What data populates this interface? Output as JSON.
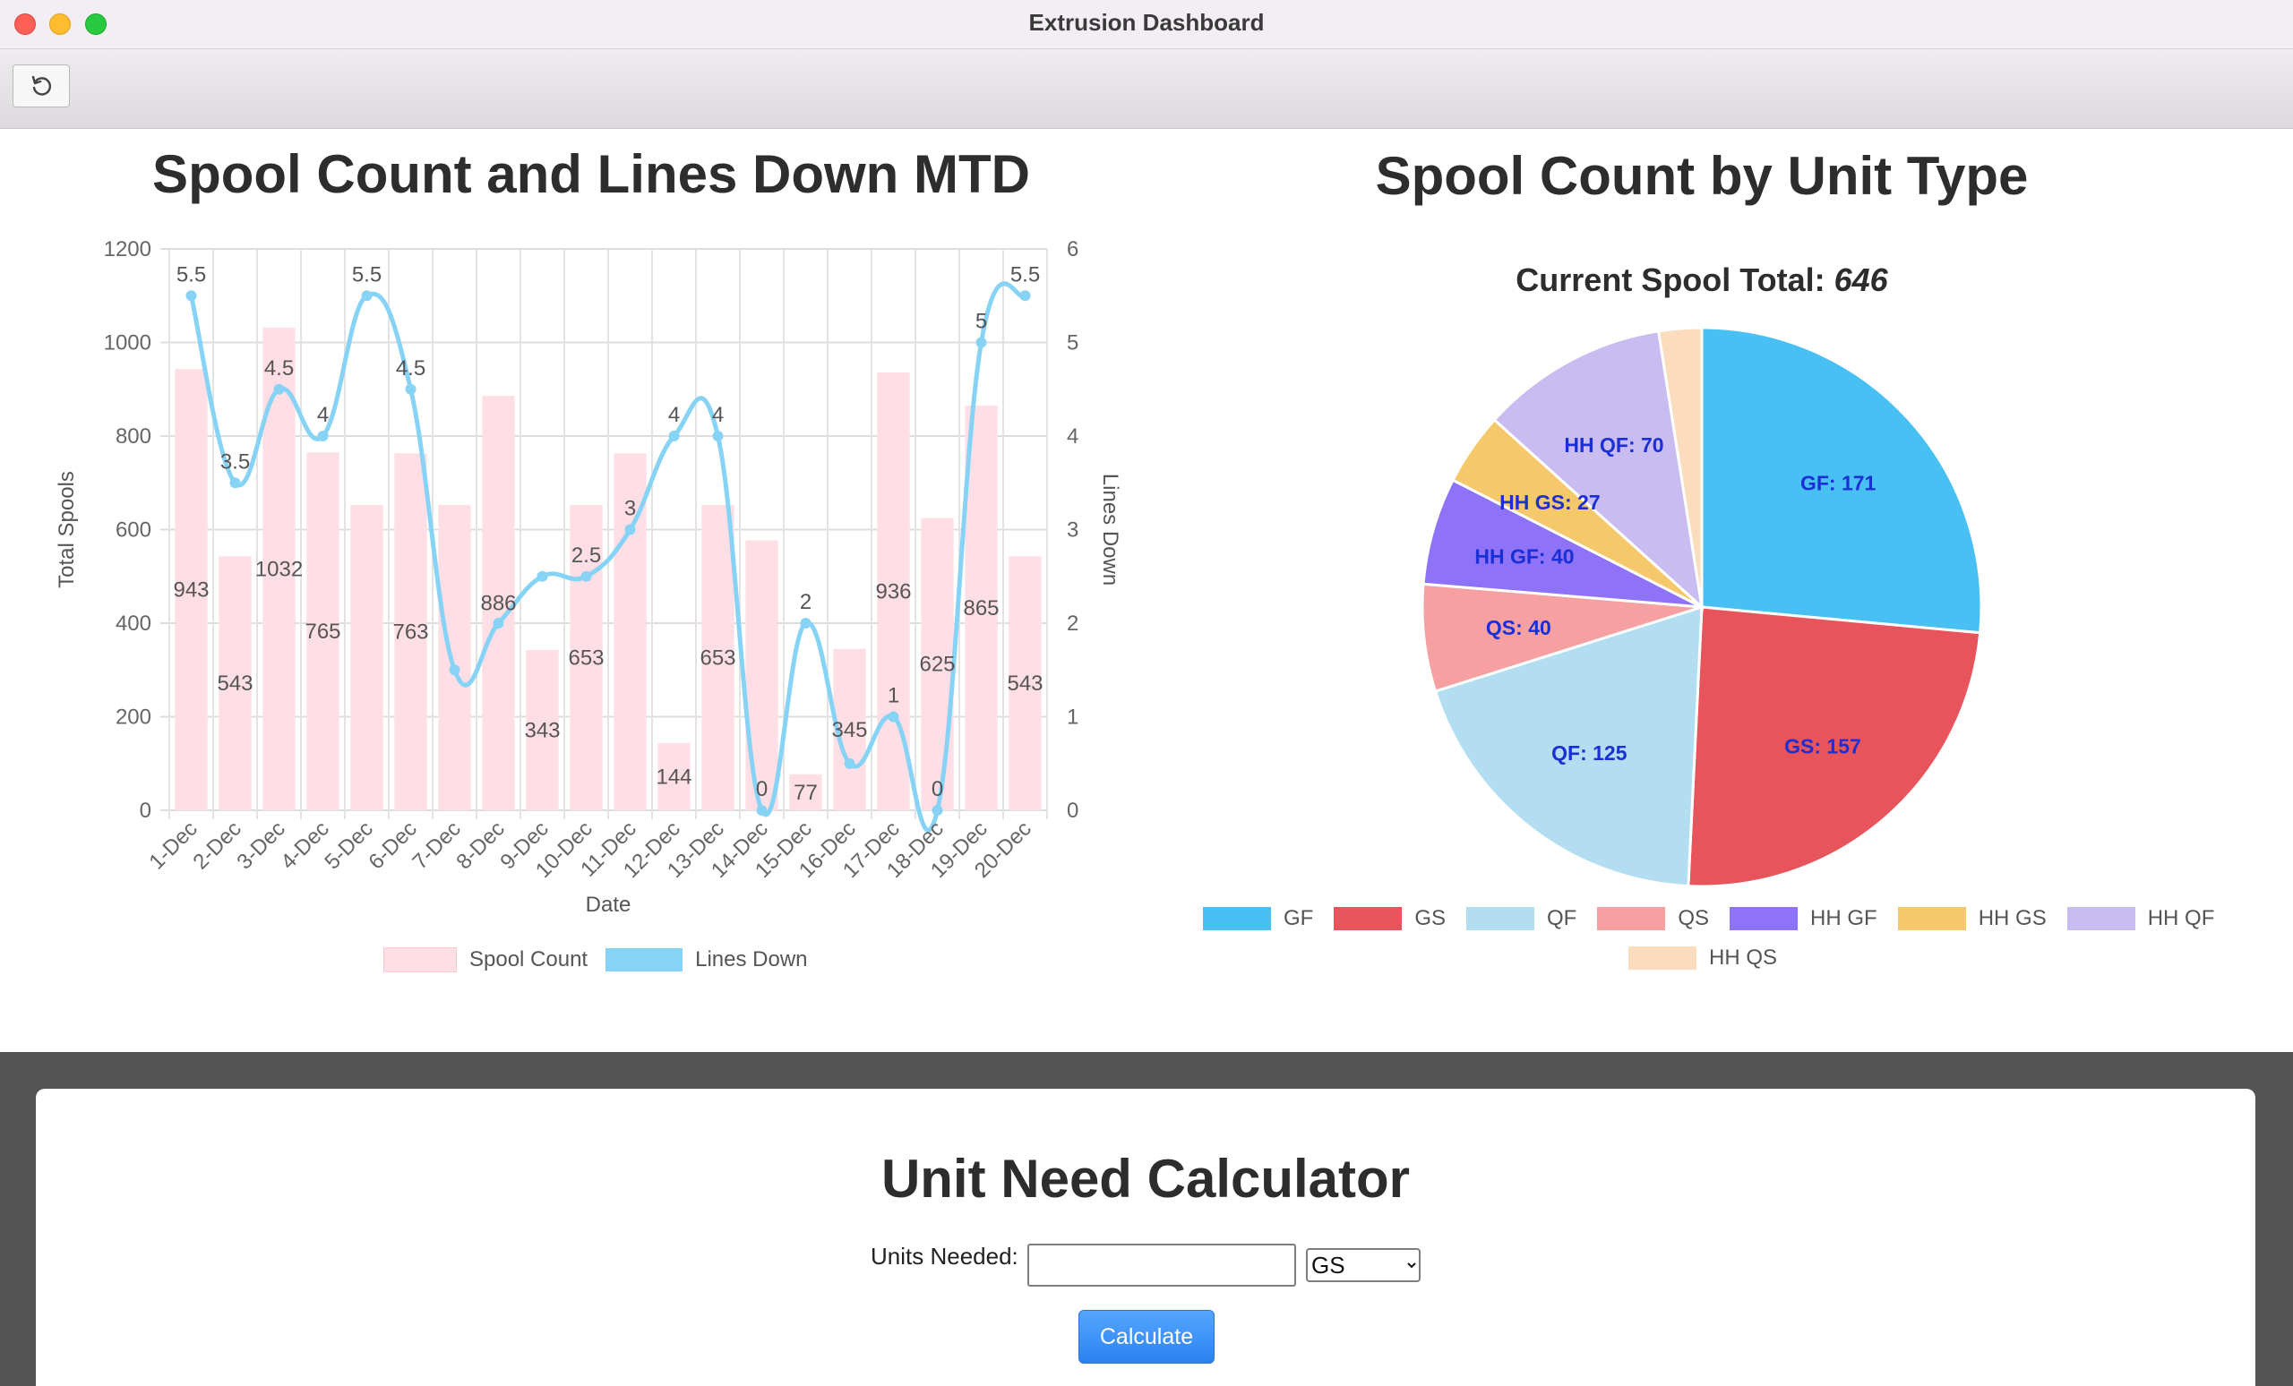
{
  "window": {
    "title": "Extrusion Dashboard"
  },
  "toolbar": {
    "refresh_icon": "refresh-icon"
  },
  "combo_chart": {
    "title": "Spool Count and Lines Down MTD"
  },
  "pie_chart": {
    "title": "Spool Count by Unit Type",
    "subtitle_label": "Current Spool Total:",
    "subtitle_value": "646"
  },
  "calculator": {
    "title": "Unit Need Calculator",
    "units_label": "Units Needed:",
    "units_value": "",
    "selected_type": "GS",
    "options": [
      "GF",
      "GS",
      "QF",
      "QS",
      "HH GF",
      "HH GS",
      "HH QF",
      "HH QS"
    ],
    "button_label": "Calculate"
  },
  "chart_data": [
    {
      "type": "bar",
      "title": "Spool Count and Lines Down MTD",
      "xlabel": "Date",
      "ylabel": "Total Spools",
      "y2label": "Lines Down",
      "categories": [
        "1-Dec",
        "2-Dec",
        "3-Dec",
        "4-Dec",
        "5-Dec",
        "6-Dec",
        "7-Dec",
        "8-Dec",
        "9-Dec",
        "10-Dec",
        "11-Dec",
        "12-Dec",
        "13-Dec",
        "14-Dec",
        "15-Dec",
        "16-Dec",
        "17-Dec",
        "18-Dec",
        "19-Dec",
        "20-Dec"
      ],
      "series": [
        {
          "name": "Spool Count",
          "type": "bar",
          "axis": "left",
          "color": "#ffdfe5",
          "values": [
            943,
            543,
            1032,
            765,
            653,
            763,
            653,
            886,
            343,
            653,
            763,
            144,
            653,
            577,
            77,
            345,
            936,
            625,
            865,
            543
          ],
          "labels": [
            "943",
            "543",
            "1032",
            "765",
            "",
            "763",
            "",
            "886",
            "343",
            "653",
            "",
            "144",
            "653",
            "",
            "77",
            "345",
            "936",
            "625",
            "865",
            "543"
          ]
        },
        {
          "name": "Lines Down",
          "type": "line",
          "axis": "right",
          "color": "#86d3f6",
          "values": [
            5.5,
            3.5,
            4.5,
            4,
            5.5,
            4.5,
            1.5,
            2,
            2.5,
            2.5,
            3,
            4,
            4,
            0,
            2,
            0.5,
            1,
            0,
            5,
            5.5
          ],
          "labels": [
            "5.5",
            "3.5",
            "4.5",
            "4",
            "5.5",
            "4.5",
            "",
            "",
            "",
            "2.5",
            "3",
            "4",
            "4",
            "0",
            "2",
            "",
            "1",
            "0",
            "5",
            "5.5"
          ]
        }
      ],
      "ylim": [
        0,
        1200
      ],
      "y2lim": [
        0,
        6
      ],
      "yticks": [
        0,
        200,
        400,
        600,
        800,
        1000,
        1200
      ],
      "y2ticks": [
        0,
        1,
        2,
        3,
        4,
        5,
        6
      ],
      "grid": true,
      "legend": "bottom"
    },
    {
      "type": "pie",
      "title": "Spool Count by Unit Type",
      "subtitle": "Current Spool Total: 646",
      "categories": [
        "GF",
        "GS",
        "QF",
        "QS",
        "HH GF",
        "HH GS",
        "HH QF",
        "HH QS"
      ],
      "values": [
        171,
        157,
        125,
        40,
        40,
        27,
        70,
        16
      ],
      "labels": [
        "GF: 171",
        "GS: 157",
        "QF: 125",
        "QS: 40",
        "HH GF: 40",
        "HH GS: 27",
        "HH QF: 70",
        ""
      ],
      "colors": [
        "#49c0f4",
        "#e8545b",
        "#b3def2",
        "#f7a0a2",
        "#8e72f8",
        "#f5c96b",
        "#c8bcf1",
        "#fbdcbd"
      ],
      "legend": "bottom"
    }
  ]
}
